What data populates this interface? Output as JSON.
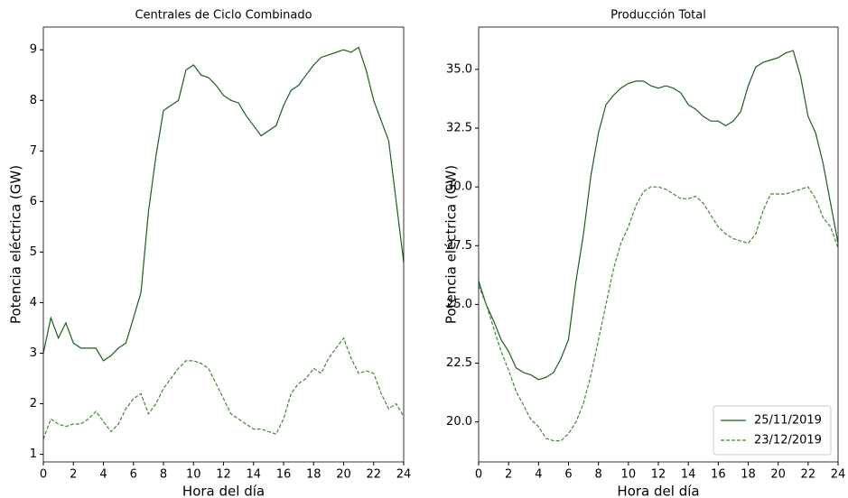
{
  "chart_data": [
    {
      "type": "line",
      "title": "Centrales de Ciclo Combinado",
      "xlabel": "Hora del día",
      "ylabel": "Potencia eléctrica (GW)",
      "x": [
        0,
        0.5,
        1,
        1.5,
        2,
        2.5,
        3,
        3.5,
        4,
        4.5,
        5,
        5.5,
        6,
        6.5,
        7,
        7.5,
        8,
        8.5,
        9,
        9.5,
        10,
        10.5,
        11,
        11.5,
        12,
        12.5,
        13,
        13.5,
        14,
        14.5,
        15,
        15.5,
        16,
        16.5,
        17,
        17.5,
        18,
        18.5,
        19,
        19.5,
        20,
        20.5,
        21,
        21.5,
        22,
        22.5,
        23,
        23.5,
        24
      ],
      "series": [
        {
          "color": "#1b5e20",
          "linestyle": "solid",
          "values": [
            3.0,
            3.7,
            3.3,
            3.6,
            3.2,
            3.1,
            3.1,
            3.1,
            2.85,
            2.95,
            3.1,
            3.2,
            3.7,
            4.2,
            5.8,
            6.9,
            7.8,
            7.9,
            8.0,
            8.6,
            8.7,
            8.5,
            8.45,
            8.3,
            8.1,
            8.0,
            7.95,
            7.7,
            7.5,
            7.3,
            7.4,
            7.5,
            7.9,
            8.2,
            8.3,
            8.5,
            8.7,
            8.85,
            8.9,
            8.95,
            9.0,
            8.95,
            9.05,
            8.6,
            8.0,
            7.6,
            7.2,
            6.0,
            4.8
          ]
        },
        {
          "color": "#3d8b2f",
          "linestyle": "dashed",
          "values": [
            1.3,
            1.7,
            1.6,
            1.55,
            1.6,
            1.6,
            1.7,
            1.85,
            1.65,
            1.45,
            1.6,
            1.9,
            2.1,
            2.2,
            1.8,
            2.0,
            2.3,
            2.5,
            2.7,
            2.85,
            2.85,
            2.8,
            2.7,
            2.4,
            2.1,
            1.8,
            1.7,
            1.6,
            1.5,
            1.5,
            1.45,
            1.4,
            1.7,
            2.2,
            2.4,
            2.5,
            2.7,
            2.6,
            2.9,
            3.1,
            3.3,
            2.9,
            2.6,
            2.65,
            2.6,
            2.2,
            1.9,
            2.0,
            1.75
          ]
        }
      ],
      "xlim": [
        0,
        24
      ],
      "xticks": [
        0,
        2,
        4,
        6,
        8,
        10,
        12,
        14,
        16,
        18,
        20,
        22,
        24
      ],
      "ylim": [
        0.85,
        9.45
      ],
      "yticks": [
        1,
        2,
        3,
        4,
        5,
        6,
        7,
        8,
        9
      ],
      "grid": false
    },
    {
      "type": "line",
      "title": "Producción Total",
      "xlabel": "Hora del día",
      "ylabel": "Potencia eléctrica (GW)",
      "x": [
        0,
        0.5,
        1,
        1.5,
        2,
        2.5,
        3,
        3.5,
        4,
        4.5,
        5,
        5.5,
        6,
        6.5,
        7,
        7.5,
        8,
        8.5,
        9,
        9.5,
        10,
        10.5,
        11,
        11.5,
        12,
        12.5,
        13,
        13.5,
        14,
        14.5,
        15,
        15.5,
        16,
        16.5,
        17,
        17.5,
        18,
        18.5,
        19,
        19.5,
        20,
        20.5,
        21,
        21.5,
        22,
        22.5,
        23,
        23.5,
        24
      ],
      "series": [
        {
          "name": "25/11/2019",
          "color": "#1b5e20",
          "linestyle": "solid",
          "values": [
            26.0,
            25.0,
            24.3,
            23.5,
            23.0,
            22.3,
            22.1,
            22.0,
            21.8,
            21.9,
            22.1,
            22.7,
            23.5,
            26.0,
            28.0,
            30.5,
            32.3,
            33.5,
            33.9,
            34.2,
            34.4,
            34.5,
            34.5,
            34.3,
            34.2,
            34.3,
            34.2,
            34.0,
            33.5,
            33.3,
            33.0,
            32.8,
            32.8,
            32.6,
            32.8,
            33.2,
            34.3,
            35.1,
            35.3,
            35.4,
            35.5,
            35.7,
            35.8,
            34.7,
            33.0,
            32.3,
            31.0,
            29.3,
            27.6
          ]
        },
        {
          "name": "23/12/2019",
          "color": "#3d8b2f",
          "linestyle": "dashed",
          "values": [
            25.8,
            25.0,
            24.0,
            23.0,
            22.2,
            21.3,
            20.7,
            20.1,
            19.8,
            19.3,
            19.2,
            19.2,
            19.5,
            20.0,
            20.8,
            22.0,
            23.5,
            25.0,
            26.5,
            27.6,
            28.3,
            29.2,
            29.8,
            30.0,
            30.0,
            29.9,
            29.7,
            29.5,
            29.5,
            29.6,
            29.3,
            28.8,
            28.3,
            28.0,
            27.8,
            27.7,
            27.6,
            28.0,
            29.0,
            29.7,
            29.7,
            29.7,
            29.8,
            29.9,
            30.0,
            29.5,
            28.7,
            28.3,
            27.4
          ]
        }
      ],
      "xlim": [
        0,
        24
      ],
      "xticks": [
        0,
        2,
        4,
        6,
        8,
        10,
        12,
        14,
        16,
        18,
        20,
        22,
        24
      ],
      "ylim": [
        18.3,
        36.8
      ],
      "yticks": [
        {
          "value": 20,
          "label": "20.0"
        },
        {
          "value": 22.5,
          "label": "22.5"
        },
        {
          "value": 25,
          "label": "25.0"
        },
        {
          "value": 27.5,
          "label": "27.5"
        },
        {
          "value": 30,
          "label": "30.0"
        },
        {
          "value": 32.5,
          "label": "32.5"
        },
        {
          "value": 35,
          "label": "35.0"
        }
      ],
      "grid": false,
      "legend": "lower right"
    }
  ]
}
